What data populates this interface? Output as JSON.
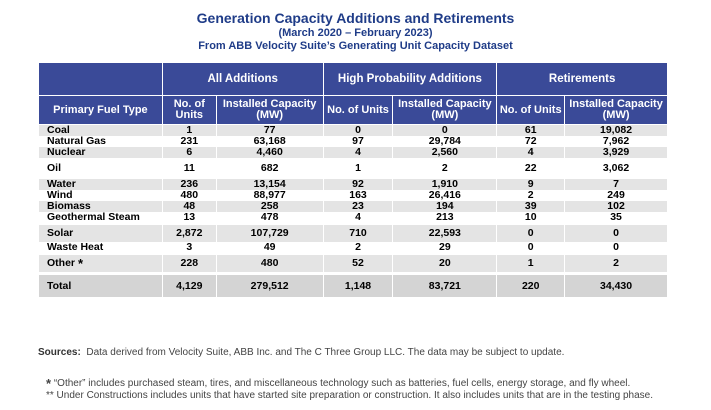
{
  "title": "Generation Capacity Additions and Retirements",
  "subtitle": "(March 2020 – February 2023)",
  "source_line": "From ABB Velocity Suite’s Generating Unit Capacity Dataset",
  "headers": {
    "all_additions": "All Additions",
    "high_probability": "High Probability Additions",
    "retirements": "Retirements",
    "fuel_type": "Primary Fuel Type",
    "units": "No. of Units",
    "capacity": "Installed Capacity (MW)"
  },
  "rows": [
    {
      "fuel": "Coal",
      "all_units": "1",
      "all_cap": "77",
      "hp_units": "0",
      "hp_cap": "0",
      "ret_units": "61",
      "ret_cap": "19,082"
    },
    {
      "fuel": "Natural Gas",
      "all_units": "231",
      "all_cap": "63,168",
      "hp_units": "97",
      "hp_cap": "29,784",
      "ret_units": "72",
      "ret_cap": "7,962"
    },
    {
      "fuel": "Nuclear",
      "all_units": "6",
      "all_cap": "4,460",
      "hp_units": "4",
      "hp_cap": "2,560",
      "ret_units": "4",
      "ret_cap": "3,929"
    },
    {
      "fuel": "Oil",
      "all_units": "11",
      "all_cap": "682",
      "hp_units": "1",
      "hp_cap": "2",
      "ret_units": "22",
      "ret_cap": "3,062"
    },
    {
      "fuel": "Water",
      "all_units": "236",
      "all_cap": "13,154",
      "hp_units": "92",
      "hp_cap": "1,910",
      "ret_units": "9",
      "ret_cap": "7"
    },
    {
      "fuel": "Wind",
      "all_units": "480",
      "all_cap": "88,977",
      "hp_units": "163",
      "hp_cap": "26,416",
      "ret_units": "2",
      "ret_cap": "249"
    },
    {
      "fuel": "Biomass",
      "all_units": "48",
      "all_cap": "258",
      "hp_units": "23",
      "hp_cap": "194",
      "ret_units": "39",
      "ret_cap": "102"
    },
    {
      "fuel": "Geothermal Steam",
      "all_units": "13",
      "all_cap": "478",
      "hp_units": "4",
      "hp_cap": "213",
      "ret_units": "10",
      "ret_cap": "35"
    },
    {
      "fuel": "Solar",
      "all_units": "2,872",
      "all_cap": "107,729",
      "hp_units": "710",
      "hp_cap": "22,593",
      "ret_units": "0",
      "ret_cap": "0"
    },
    {
      "fuel": "Waste Heat",
      "all_units": "3",
      "all_cap": "49",
      "hp_units": "2",
      "hp_cap": "29",
      "ret_units": "0",
      "ret_cap": "0"
    },
    {
      "fuel": "Other",
      "all_units": "228",
      "all_cap": "480",
      "hp_units": "52",
      "hp_cap": "20",
      "ret_units": "1",
      "ret_cap": "2"
    }
  ],
  "total": {
    "fuel": "Total",
    "all_units": "4,129",
    "all_cap": "279,512",
    "hp_units": "1,148",
    "hp_cap": "83,721",
    "ret_units": "220",
    "ret_cap": "34,430"
  },
  "sources_label": "Sources:",
  "sources_text": "Data derived from Velocity Suite, ABB Inc. and The C Three Group LLC.  The data may be subject to update.",
  "footnote_star": "*",
  "footnote_1": "“Other” includes purchased steam, tires, and miscellaneous technology such as batteries, fuel cells, energy storage, and fly wheel.",
  "footnote_2": "** Under Constructions includes units that have started site preparation or construction.  It also includes units that are in the testing phase.",
  "colors": {
    "header_bg": "#3a4a98",
    "title": "#1f3c88",
    "stripe": "#e4e4e4",
    "total_bg": "#d4d4d4"
  }
}
